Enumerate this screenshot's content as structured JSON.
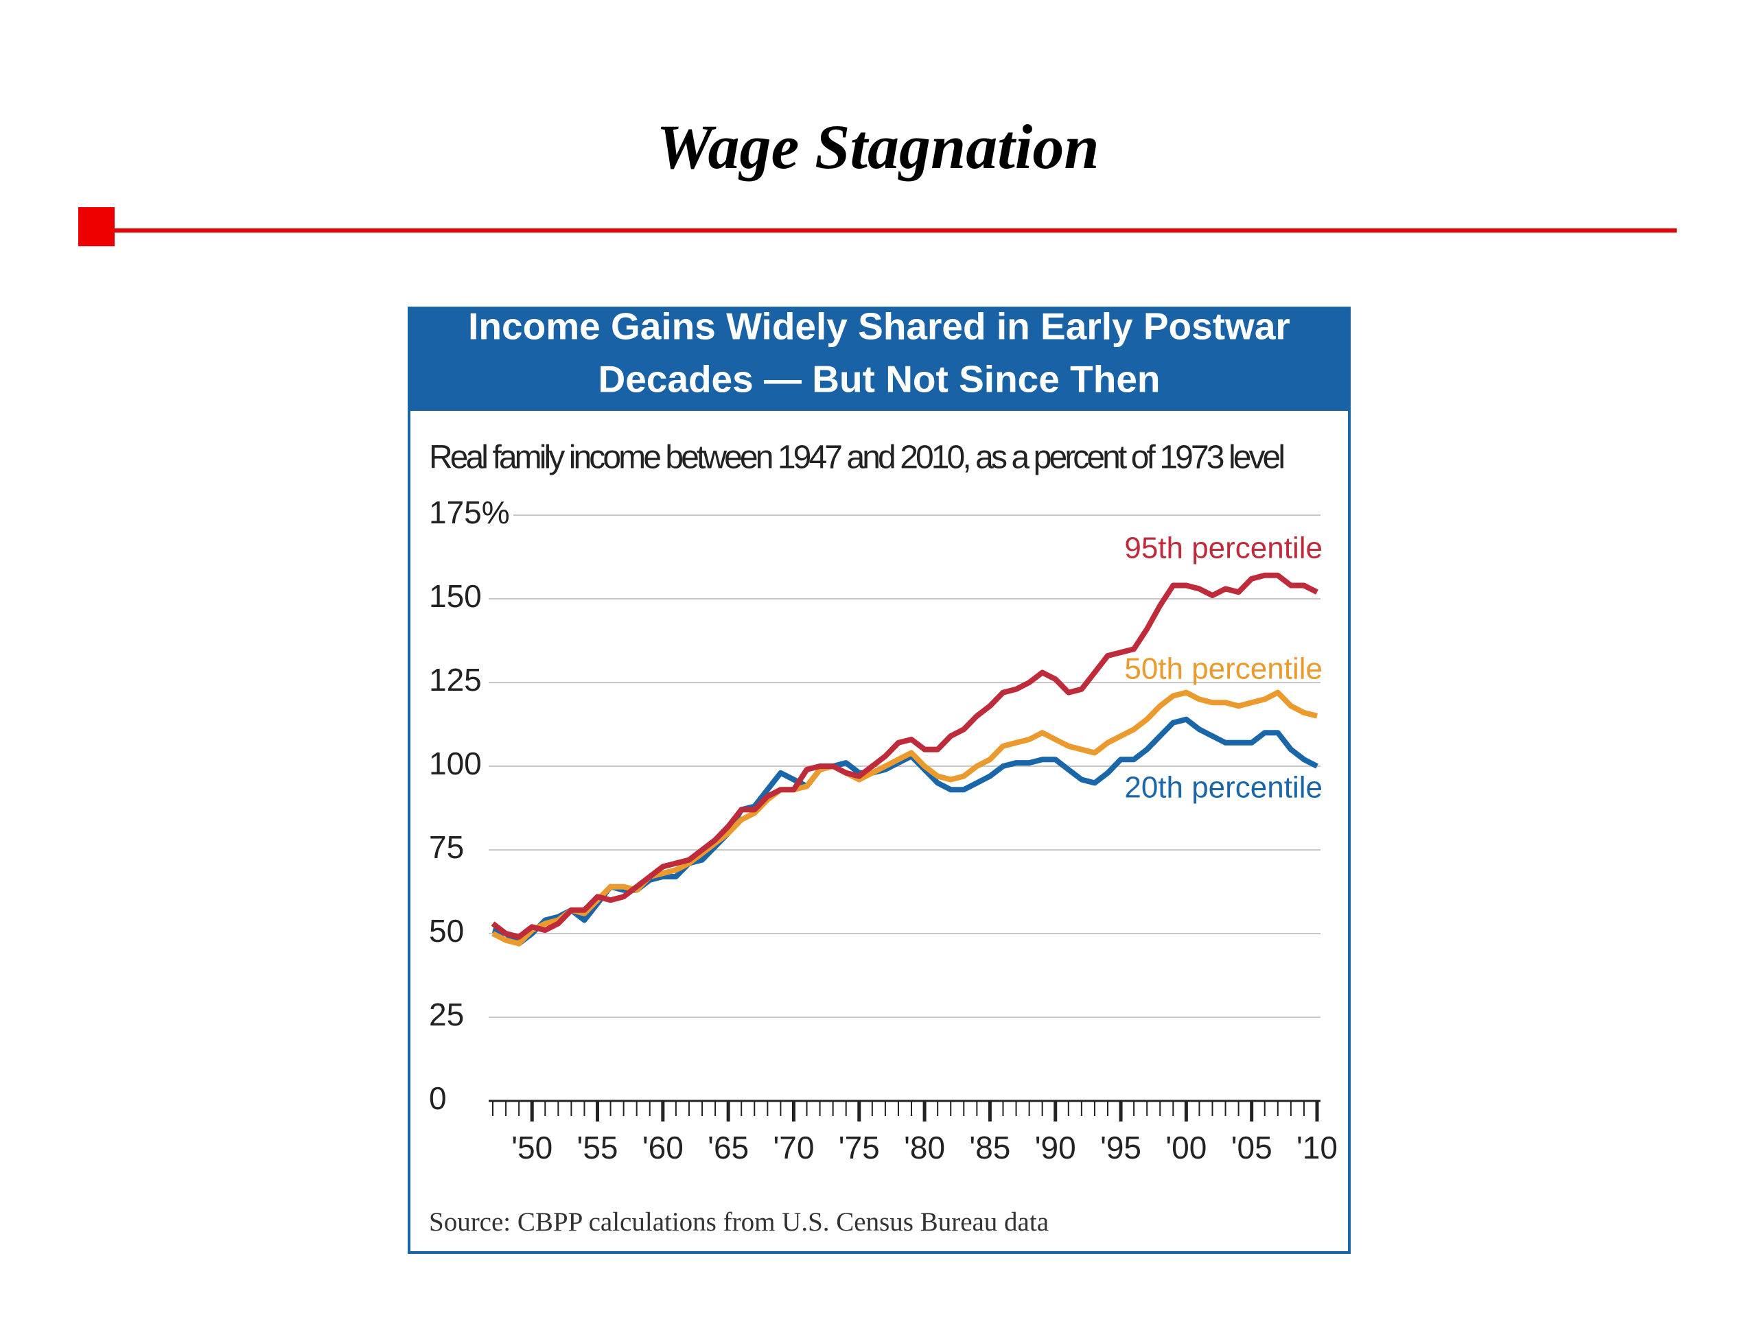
{
  "page_title": "Wage Stagnation",
  "chart_data": {
    "type": "line",
    "title": [
      "Income Gains Widely Shared in Early Postwar",
      "Decades — But Not Since Then"
    ],
    "subtitle": "Real family income between 1947 and 2010, as a percent of 1973 level",
    "source": "Source: CBPP calculations from U.S. Census Bureau data",
    "x": [
      1947,
      1948,
      1949,
      1950,
      1951,
      1952,
      1953,
      1954,
      1955,
      1956,
      1957,
      1958,
      1959,
      1960,
      1961,
      1962,
      1963,
      1964,
      1965,
      1966,
      1967,
      1968,
      1969,
      1970,
      1971,
      1972,
      1973,
      1974,
      1975,
      1976,
      1977,
      1978,
      1979,
      1980,
      1981,
      1982,
      1983,
      1984,
      1985,
      1986,
      1987,
      1988,
      1989,
      1990,
      1991,
      1992,
      1993,
      1994,
      1995,
      1996,
      1997,
      1998,
      1999,
      2000,
      2001,
      2002,
      2003,
      2004,
      2005,
      2006,
      2007,
      2008,
      2009,
      2010
    ],
    "series": [
      {
        "name": "95th percentile",
        "color": "#be2c3c",
        "values": [
          53,
          50,
          49,
          52,
          51,
          53,
          57,
          57,
          61,
          60,
          61,
          64,
          67,
          70,
          71,
          72,
          75,
          78,
          82,
          87,
          87,
          91,
          93,
          93,
          99,
          100,
          100,
          98,
          97,
          100,
          103,
          107,
          108,
          105,
          105,
          109,
          111,
          115,
          118,
          122,
          123,
          125,
          128,
          126,
          122,
          123,
          128,
          133,
          134,
          135,
          141,
          148,
          154,
          154,
          153,
          151,
          153,
          152,
          156,
          157,
          157,
          154,
          154,
          152
        ]
      },
      {
        "name": "50th percentile",
        "color": "#eb9b2d",
        "values": [
          50,
          48,
          47,
          51,
          53,
          54,
          57,
          56,
          60,
          64,
          64,
          63,
          67,
          68,
          69,
          71,
          74,
          77,
          80,
          84,
          86,
          90,
          93,
          93,
          94,
          99,
          100,
          98,
          96,
          98,
          100,
          102,
          104,
          100,
          97,
          96,
          97,
          100,
          102,
          106,
          107,
          108,
          110,
          108,
          106,
          105,
          104,
          107,
          109,
          111,
          114,
          118,
          121,
          122,
          120,
          119,
          119,
          118,
          119,
          120,
          122,
          118,
          116,
          115
        ]
      },
      {
        "name": "20th percentile",
        "color": "#1a66a8",
        "values": [
          51,
          50,
          47,
          50,
          54,
          55,
          57,
          54,
          59,
          64,
          63,
          63,
          66,
          67,
          67,
          71,
          72,
          76,
          80,
          87,
          88,
          93,
          98,
          96,
          94,
          99,
          100,
          101,
          98,
          98,
          99,
          101,
          103,
          99,
          95,
          93,
          93,
          95,
          97,
          100,
          101,
          101,
          102,
          102,
          99,
          96,
          95,
          98,
          102,
          102,
          105,
          109,
          113,
          114,
          111,
          109,
          107,
          107,
          107,
          110,
          110,
          105,
          102,
          100
        ]
      }
    ],
    "xlim": [
      1947,
      2010
    ],
    "xticks": [
      {
        "value": 1950,
        "label": "'50"
      },
      {
        "value": 1955,
        "label": "'55"
      },
      {
        "value": 1960,
        "label": "'60"
      },
      {
        "value": 1965,
        "label": "'65"
      },
      {
        "value": 1970,
        "label": "'70"
      },
      {
        "value": 1975,
        "label": "'75"
      },
      {
        "value": 1980,
        "label": "'80"
      },
      {
        "value": 1985,
        "label": "'85"
      },
      {
        "value": 1990,
        "label": "'90"
      },
      {
        "value": 1995,
        "label": "'95"
      },
      {
        "value": 2000,
        "label": "'00"
      },
      {
        "value": 2005,
        "label": "'05"
      },
      {
        "value": 2010,
        "label": "'10"
      }
    ],
    "ylim": [
      0,
      175
    ],
    "yticks": [
      0,
      25,
      50,
      75,
      100,
      125,
      150,
      {
        "value": 175,
        "label": "175%"
      }
    ],
    "grid": true
  }
}
